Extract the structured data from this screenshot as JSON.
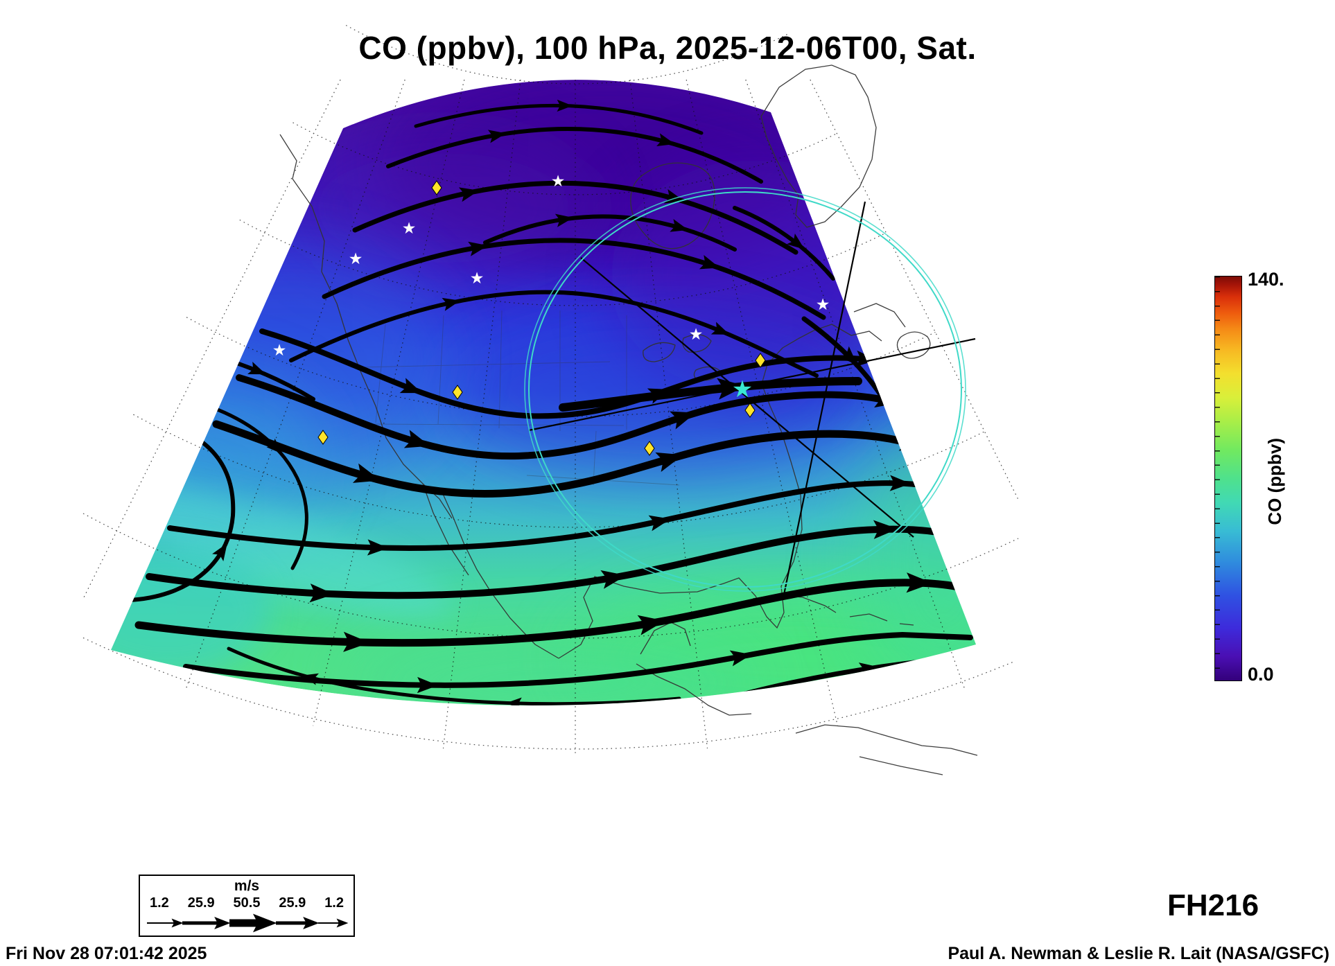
{
  "title": "CO (ppbv), 100 hPa, 2025-12-06T00, Sat.",
  "colorbar": {
    "max_label": "140.",
    "min_label": "0.0",
    "axis_label": "CO (ppbv)"
  },
  "wind_legend": {
    "unit": "m/s",
    "values": [
      "1.2",
      "25.9",
      "50.5",
      "25.9",
      "1.2"
    ]
  },
  "forecast_hour_label": "FH216",
  "footer": {
    "timestamp": "Fri Nov 28 07:01:42 2025",
    "credit": "Paul A. Newman & Leslie R. Lait (NASA/GSFC)"
  },
  "icons": {
    "star_glyph": "★"
  },
  "accent_colors": {
    "range_circle": "#3fd9c8",
    "station_diamond": "#ffe42a",
    "streamline": "#000000",
    "low_co_purple": "#4a0ca6",
    "mid_co_blue": "#2c3edc",
    "high_co_green": "#52e287"
  },
  "chart_data": {
    "type": "heatmap",
    "title": "CO (ppbv), 100 hPa, 2025-12-06T00, Sat.",
    "variable": "CO",
    "units": "ppbv",
    "pressure_level_hPa": 100,
    "valid_time": "2025-12-06T00 (Saturday)",
    "forecast_hour": 216,
    "plot_generated": "Fri Nov 28 07:01:42 2025",
    "credit": "Paul A. Newman & Leslie R. Lait (NASA/GSFC)",
    "projection": "azimuthal sector (fan) over North America, pole toward top",
    "colorbar": {
      "label": "CO (ppbv)",
      "min": 0.0,
      "max": 140.0,
      "tick_labels": [
        "0.0",
        "140."
      ],
      "palette": [
        "#33007a",
        "#4a0fb4",
        "#3d2bdb",
        "#2f51e2",
        "#2f8ade",
        "#38bcd4",
        "#41d9b4",
        "#4fe18c",
        "#71e960",
        "#a8ee48",
        "#d9ef3a",
        "#f3df2e",
        "#f7b722",
        "#f58a16",
        "#ee5b0e",
        "#d92f0a",
        "#a51408",
        "#7c0c06"
      ]
    },
    "field_summary": [
      {
        "region": "northern Canada (top of domain)",
        "approx_co_ppbv": 12
      },
      {
        "region": "central Canada band",
        "approx_co_ppbv": 25
      },
      {
        "region": "northern United States",
        "approx_co_ppbv": 38
      },
      {
        "region": "southern United States",
        "approx_co_ppbv": 50
      },
      {
        "region": "Mexico / Gulf / Caribbean",
        "approx_co_ppbv": 62
      },
      {
        "region": "deep tropics, bottom right",
        "approx_co_ppbv": 70
      }
    ],
    "wind_overlay": {
      "type": "streamlines",
      "units": "m/s",
      "speed_scale": [
        1.2,
        25.9,
        50.5,
        25.9,
        1.2
      ],
      "note": "black streamlines; line thickness proportional to wind speed, arrowheads show direction; broad ridge over Canada, westerly jet across mid-domain, cyclonic eddy lower-left, weak easterlies near tropics"
    },
    "overlays": {
      "station_markers_yellow_diamonds": 6,
      "location_markers_white_stars": 7,
      "range_circle": {
        "color": "#3fd9c8",
        "center_marker": "cyan star near US east coast"
      },
      "cross_section_lines": 3
    }
  }
}
